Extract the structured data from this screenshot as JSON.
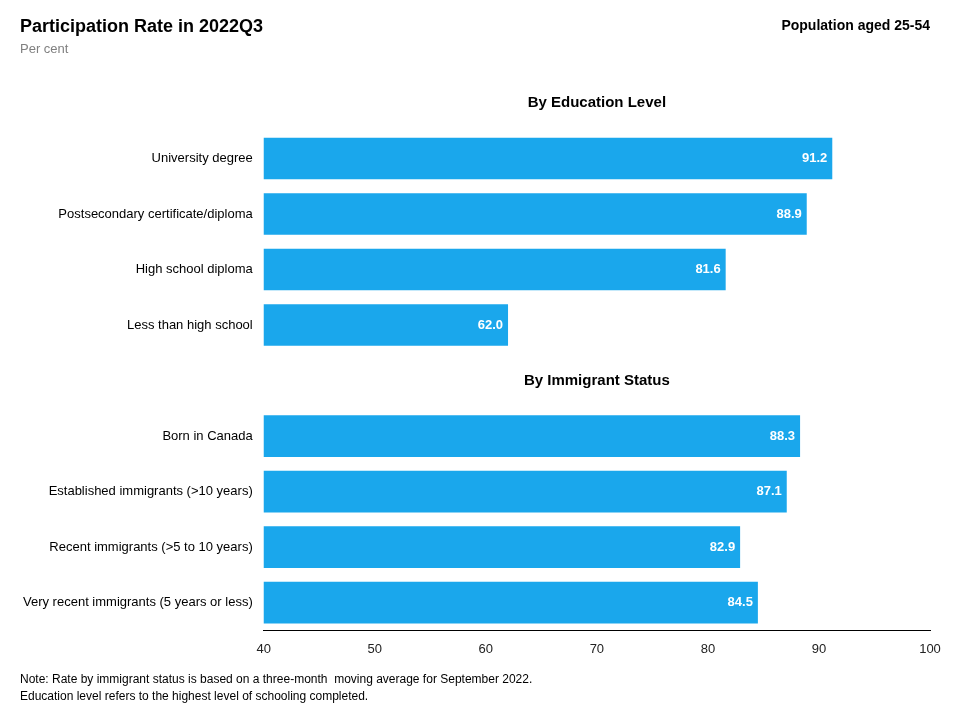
{
  "chart_data": {
    "type": "bar",
    "orientation": "horizontal",
    "title": "Participation Rate in 2022Q3",
    "subtitle": "Per cent",
    "annotations": [
      "Population aged 25-54"
    ],
    "notes": [
      "Note: Rate by immigrant status is based on a three-month  moving average for September 2022.",
      "Education level refers to the highest level of schooling completed."
    ],
    "sections": [
      {
        "title": "By Education Level",
        "categories": [
          "University degree",
          "Postsecondary certificate/diploma",
          "High school diploma",
          "Less than high school"
        ],
        "values": [
          91.2,
          88.9,
          81.6,
          62.0
        ],
        "value_labels": [
          "91.2",
          "88.9",
          "81.6",
          "62.0"
        ]
      },
      {
        "title": "By Immigrant Status",
        "categories": [
          "Born in Canada",
          "Established immigrants (>10 years)",
          "Recent immigrants (>5 to 10 years)",
          "Very recent immigrants (5 years or less)"
        ],
        "values": [
          88.3,
          87.1,
          82.9,
          84.5
        ],
        "value_labels": [
          "88.3",
          "87.1",
          "82.9",
          "84.5"
        ]
      }
    ],
    "color": "#1AA7EC",
    "xlim": [
      40,
      100
    ],
    "xticks": [
      40,
      50,
      60,
      70,
      80,
      90,
      100
    ],
    "grid": false,
    "data_labels": true
  }
}
